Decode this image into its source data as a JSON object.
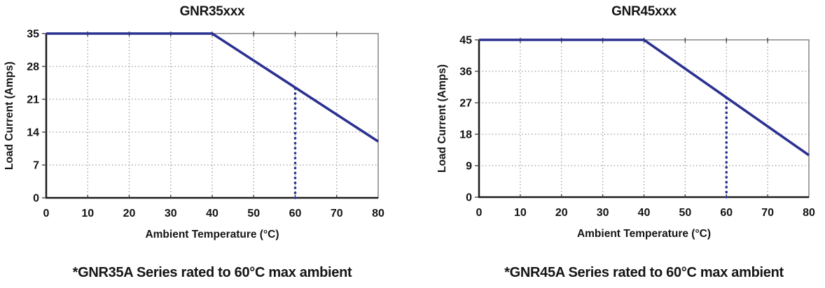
{
  "page": {
    "background": "#ffffff"
  },
  "colors": {
    "line": "#2b3191",
    "marker_line": "#2b3191",
    "grid": "#8c8c8c",
    "border": "#7d7d7d",
    "axis": "#1c1c1c",
    "text": "#141414",
    "background": "#ffffff"
  },
  "chart_data": [
    {
      "type": "line",
      "title": "GNR35xxx",
      "xlabel": "Ambient Temperature (°C)",
      "ylabel": "Load Current (Amps)",
      "caption": "*GNR35A Series rated to 60°C max ambient",
      "xlim": [
        0,
        80
      ],
      "ylim": [
        0,
        35
      ],
      "x_ticks": [
        0,
        10,
        20,
        30,
        40,
        50,
        60,
        70,
        80
      ],
      "y_ticks": [
        0,
        7,
        14,
        21,
        28,
        35
      ],
      "grid": true,
      "legend": "none",
      "line_color": "#2b3191",
      "series": [
        {
          "name": "load-current-derating",
          "x": [
            0,
            40,
            80
          ],
          "y": [
            35,
            35,
            12
          ]
        }
      ],
      "marker_line": {
        "x": 60,
        "y_top": 23.5,
        "style": "dotted",
        "color": "#2b3191"
      }
    },
    {
      "type": "line",
      "title": "GNR45xxx",
      "xlabel": "Ambient Temperature (°C)",
      "ylabel": "Load Current (Amps)",
      "caption": "*GNR45A Series rated to 60°C max ambient",
      "xlim": [
        0,
        80
      ],
      "ylim": [
        0,
        45
      ],
      "x_ticks": [
        0,
        10,
        20,
        30,
        40,
        50,
        60,
        70,
        80
      ],
      "y_ticks": [
        0,
        9,
        18,
        27,
        36,
        45
      ],
      "grid": true,
      "legend": "none",
      "line_color": "#2b3191",
      "series": [
        {
          "name": "load-current-derating",
          "x": [
            0,
            40,
            80
          ],
          "y": [
            45,
            45,
            12
          ]
        }
      ],
      "marker_line": {
        "x": 60,
        "y_top": 28.5,
        "style": "dotted",
        "color": "#2b3191"
      }
    }
  ]
}
